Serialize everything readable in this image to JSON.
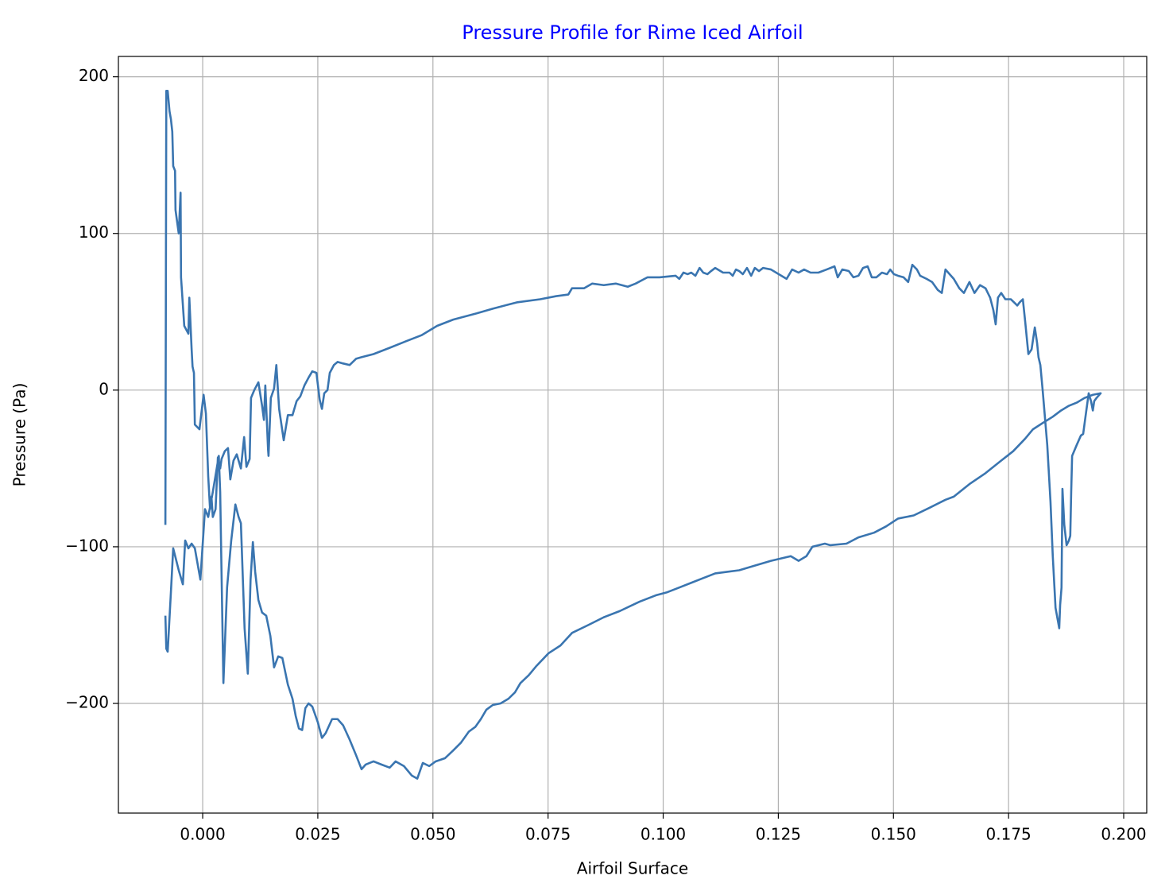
{
  "chart_data": {
    "type": "line",
    "title": "Pressure Profile for Rime Iced Airfoil",
    "x_label": "Airfoil Surface",
    "y_label": "Pressure (Pa)",
    "color": "#3a75b0",
    "title_color": "#0000ff",
    "grid": true,
    "xlim": [
      -0.0183,
      0.205
    ],
    "ylim": [
      -270,
      213
    ],
    "xticks": [
      {
        "value": 0,
        "label": "0.000"
      },
      {
        "value": 0.025,
        "label": "0.025"
      },
      {
        "value": 0.05,
        "label": "0.050"
      },
      {
        "value": 0.075,
        "label": "0.075"
      },
      {
        "value": 0.1,
        "label": "0.100"
      },
      {
        "value": 0.125,
        "label": "0.125"
      },
      {
        "value": 0.15,
        "label": "0.150"
      },
      {
        "value": 0.175,
        "label": "0.175"
      },
      {
        "value": 0.2,
        "label": "0.200"
      }
    ],
    "yticks": [
      {
        "value": -200,
        "label": "−200"
      },
      {
        "value": -100,
        "label": "−100"
      },
      0,
      100,
      200
    ],
    "x": [
      -0.0081,
      -0.0079,
      -0.0076,
      -0.0072,
      -0.0069,
      -0.0066,
      -0.0064,
      -0.006,
      -0.0059,
      -0.0052,
      -0.0048,
      -0.0047,
      -0.004,
      -0.0031,
      -0.0029,
      -0.0024,
      -0.0022,
      -0.0019,
      -0.0017,
      -0.0007,
      0.0002,
      0.0007,
      0.0012,
      0.0016,
      0.0019,
      0.0022,
      0.0028,
      0.0033,
      0.0038,
      0.0041,
      0.0048,
      0.0055,
      0.006,
      0.0067,
      0.0074,
      0.0083,
      0.009,
      0.0095,
      0.0102,
      0.0105,
      0.0112,
      0.0121,
      0.0129,
      0.0133,
      0.0136,
      0.0142,
      0.0143,
      0.0148,
      0.0155,
      0.016,
      0.0166,
      0.0176,
      0.0185,
      0.0195,
      0.0204,
      0.0212,
      0.0221,
      0.023,
      0.0238,
      0.0247,
      0.0254,
      0.0259,
      0.0264,
      0.0271,
      0.0276,
      0.0285,
      0.0293,
      0.0305,
      0.0319,
      0.0333,
      0.0345,
      0.0371,
      0.0406,
      0.044,
      0.0475,
      0.0509,
      0.0544,
      0.0595,
      0.063,
      0.0682,
      0.0733,
      0.0768,
      0.0794,
      0.0802,
      0.0828,
      0.0846,
      0.0871,
      0.0897,
      0.0923,
      0.094,
      0.0966,
      0.0992,
      0.1027,
      0.1035,
      0.1044,
      0.1053,
      0.1061,
      0.107,
      0.1079,
      0.1087,
      0.1096,
      0.1104,
      0.1113,
      0.113,
      0.1144,
      0.1151,
      0.1158,
      0.1165,
      0.1173,
      0.1182,
      0.1191,
      0.1199,
      0.1208,
      0.1217,
      0.1234,
      0.1251,
      0.1268,
      0.128,
      0.1294,
      0.1306,
      0.132,
      0.1337,
      0.1355,
      0.1372,
      0.1379,
      0.1389,
      0.1403,
      0.1413,
      0.1424,
      0.1434,
      0.1444,
      0.1453,
      0.1463,
      0.1475,
      0.1486,
      0.1493,
      0.1501,
      0.151,
      0.1522,
      0.1532,
      0.1541,
      0.1551,
      0.1558,
      0.1572,
      0.1584,
      0.1596,
      0.1605,
      0.1613,
      0.1622,
      0.1631,
      0.1643,
      0.1653,
      0.1665,
      0.1676,
      0.1688,
      0.17,
      0.171,
      0.1717,
      0.1722,
      0.1727,
      0.1734,
      0.1743,
      0.1755,
      0.1762,
      0.1769,
      0.1774,
      0.1781,
      0.1786,
      0.1793,
      0.18,
      0.1807,
      0.1812,
      0.1815,
      0.1819,
      0.1824,
      0.1834,
      0.1841,
      0.1846,
      0.1852,
      0.186,
      0.1862,
      0.1865,
      0.1867,
      0.1871,
      0.1876,
      0.1881,
      0.1884,
      0.1886,
      0.1888,
      0.1898,
      0.1907,
      0.1912,
      0.1917,
      0.1924,
      0.1929,
      0.1933,
      0.1936,
      0.1941,
      0.195,
      0.1933,
      0.1915,
      0.1898,
      0.1881,
      0.1864,
      0.1846,
      0.1824,
      0.1803,
      0.1786,
      0.176,
      0.1734,
      0.17,
      0.1665,
      0.1631,
      0.1613,
      0.1579,
      0.1544,
      0.151,
      0.1484,
      0.1458,
      0.1424,
      0.1398,
      0.1363,
      0.1351,
      0.1324,
      0.1311,
      0.1294,
      0.1277,
      0.1234,
      0.1199,
      0.1165,
      0.1139,
      0.1113,
      0.1087,
      0.1061,
      0.1035,
      0.1009,
      0.0984,
      0.0949,
      0.0906,
      0.0871,
      0.0837,
      0.0802,
      0.0777,
      0.0751,
      0.0725,
      0.0708,
      0.069,
      0.0678,
      0.0664,
      0.0647,
      0.063,
      0.0616,
      0.0604,
      0.0592,
      0.0578,
      0.0561,
      0.0544,
      0.0526,
      0.0506,
      0.0492,
      0.0478,
      0.0466,
      0.0454,
      0.0437,
      0.0419,
      0.0406,
      0.0388,
      0.0371,
      0.0354,
      0.0345,
      0.0333,
      0.0319,
      0.0305,
      0.0293,
      0.0281,
      0.0267,
      0.0259,
      0.025,
      0.0238,
      0.023,
      0.0223,
      0.0216,
      0.0209,
      0.0202,
      0.0195,
      0.0185,
      0.0173,
      0.0164,
      0.0155,
      0.0147,
      0.0138,
      0.0129,
      0.0121,
      0.0114,
      0.0109,
      0.0104,
      0.0098,
      0.0091,
      0.0083,
      0.0078,
      0.0071,
      0.0062,
      0.0053,
      0.0045,
      0.0038,
      0.0035,
      0.0022,
      0.0012,
      0.0005,
      -0.0005,
      -0.0017,
      -0.0024,
      -0.0031,
      -0.0038,
      -0.0043,
      -0.0052,
      -0.0064,
      -0.0069,
      -0.0076,
      -0.0079,
      -0.0081
    ],
    "values": [
      -86,
      191,
      191,
      178,
      173,
      165,
      143,
      140,
      115,
      100,
      126,
      72,
      41,
      36,
      59,
      26,
      15,
      11,
      -22,
      -25,
      -3,
      -15,
      -55,
      -76,
      -68,
      -81,
      -76,
      -43,
      -50,
      -44,
      -39,
      -37,
      -57,
      -45,
      -41,
      -50,
      -30,
      -49,
      -44,
      -5,
      0,
      5,
      -10,
      -19,
      3,
      -38,
      -42,
      -5,
      1,
      16,
      -12,
      -32,
      -16,
      -16,
      -7,
      -4,
      3,
      8,
      12,
      11,
      -6,
      -12,
      -2,
      0,
      11,
      16,
      18,
      17,
      16,
      20,
      21,
      23,
      27,
      31,
      35,
      41,
      45,
      49,
      52,
      56,
      58,
      60,
      61,
      65,
      65,
      68,
      67,
      68,
      66,
      68,
      72,
      72,
      73,
      71,
      75,
      74,
      75,
      73,
      78,
      75,
      74,
      76,
      78,
      75,
      75,
      73,
      77,
      76,
      74,
      78,
      73,
      78,
      76,
      78,
      77,
      74,
      71,
      77,
      75,
      77,
      75,
      75,
      77,
      79,
      72,
      77,
      76,
      72,
      73,
      78,
      79,
      72,
      72,
      75,
      74,
      77,
      74,
      73,
      72,
      69,
      80,
      77,
      73,
      71,
      69,
      64,
      62,
      77,
      74,
      71,
      65,
      62,
      69,
      62,
      67,
      65,
      59,
      51,
      42,
      59,
      62,
      58,
      58,
      56,
      54,
      56,
      58,
      44,
      23,
      26,
      40,
      30,
      21,
      16,
      0,
      -35,
      -71,
      -106,
      -139,
      -152,
      -137,
      -126,
      -63,
      -86,
      -99,
      -96,
      -93,
      -65,
      -42,
      -35,
      -29,
      -28,
      -17,
      -2,
      -7,
      -13,
      -7,
      -5,
      -2,
      -3,
      -5,
      -8,
      -10,
      -13,
      -17,
      -21,
      -25,
      -31,
      -39,
      -45,
      -53,
      -60,
      -68,
      -70,
      -75,
      -80,
      -82,
      -87,
      -91,
      -94,
      -98,
      -99,
      -98,
      -100,
      -106,
      -109,
      -106,
      -109,
      -112,
      -115,
      -116,
      -117,
      -120,
      -123,
      -126,
      -129,
      -131,
      -135,
      -141,
      -145,
      -150,
      -155,
      -163,
      -168,
      -176,
      -182,
      -187,
      -193,
      -197,
      -200,
      -201,
      -204,
      -210,
      -215,
      -218,
      -225,
      -230,
      -235,
      -237,
      -240,
      -238,
      -248,
      -246,
      -240,
      -237,
      -241,
      -239,
      -237,
      -239,
      -242,
      -233,
      -223,
      -214,
      -210,
      -210,
      -219,
      -222,
      -212,
      -202,
      -200,
      -203,
      -217,
      -216,
      -208,
      -197,
      -188,
      -171,
      -170,
      -177,
      -157,
      -144,
      -142,
      -134,
      -116,
      -97,
      -121,
      -181,
      -152,
      -85,
      -81,
      -73,
      -96,
      -126,
      -187,
      -65,
      -42,
      -65,
      -81,
      -76,
      -121,
      -101,
      -98,
      -101,
      -96,
      -124,
      -115,
      -101,
      -129,
      -167,
      -165,
      -144
    ]
  }
}
